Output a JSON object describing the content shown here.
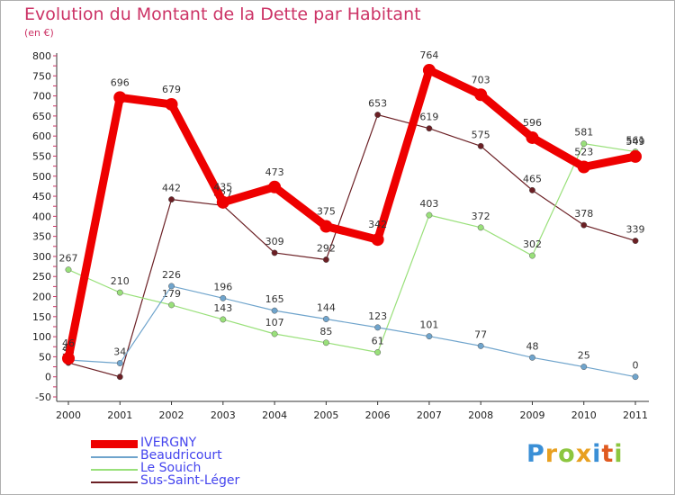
{
  "chart_data": {
    "type": "line",
    "title": "Evolution du Montant de la Dette par Habitant",
    "unit_label": "(en €)",
    "x": [
      "2000",
      "2001",
      "2002",
      "2003",
      "2004",
      "2005",
      "2006",
      "2007",
      "2008",
      "2009",
      "2010",
      "2011"
    ],
    "ylim": [
      -50,
      800
    ],
    "yticks": [
      "-50",
      "0",
      "50",
      "100",
      "150",
      "200",
      "250",
      "300",
      "350",
      "400",
      "450",
      "500",
      "550",
      "600",
      "650",
      "700",
      "750",
      "800"
    ],
    "grid": false,
    "series": [
      {
        "name": "Sus-Saint-Léger",
        "color": "#6b1f24",
        "values": [
          35,
          0,
          442,
          427,
          309,
          292,
          653,
          619,
          575,
          465,
          378,
          339
        ],
        "labels": [
          "35",
          "",
          "442",
          "427",
          "309",
          "292",
          "653",
          "619",
          "575",
          "465",
          "378",
          "339"
        ]
      },
      {
        "name": "Le Souich",
        "color": "#99e07a",
        "values": [
          267,
          210,
          179,
          143,
          107,
          85,
          61,
          403,
          372,
          302,
          581,
          561
        ],
        "labels": [
          "267",
          "210",
          "179",
          "143",
          "107",
          "85",
          "61",
          "403",
          "372",
          "302",
          "581",
          "561"
        ]
      },
      {
        "name": "Beaudricourt",
        "color": "#6fa4cc",
        "values": [
          42,
          34,
          226,
          196,
          165,
          144,
          123,
          101,
          77,
          48,
          25,
          0
        ],
        "labels": [
          "42",
          "34",
          "226",
          "196",
          "165",
          "144",
          "123",
          "101",
          "77",
          "48",
          "25",
          "0"
        ]
      },
      {
        "name": "IVERGNY",
        "color": "#ee0000",
        "values": [
          46,
          696,
          679,
          435,
          473,
          375,
          342,
          764,
          703,
          596,
          523,
          549
        ],
        "labels": [
          "46",
          "696",
          "679",
          "435",
          "473",
          "375",
          "342",
          "764",
          "703",
          "596",
          "523",
          "549"
        ]
      }
    ]
  },
  "legend": {
    "items": [
      {
        "label": "IVERGNY",
        "color": "#ee0000"
      },
      {
        "label": "Beaudricourt",
        "color": "#6fa4cc"
      },
      {
        "label": "Le Souich",
        "color": "#99e07a"
      },
      {
        "label": "Sus-Saint-Léger",
        "color": "#6b1f24"
      }
    ]
  },
  "logo": {
    "letters": [
      {
        "ch": "P",
        "color": "#3a8fd6"
      },
      {
        "ch": "r",
        "color": "#e8a020"
      },
      {
        "ch": "o",
        "color": "#8cc63f"
      },
      {
        "ch": "x",
        "color": "#e8a020"
      },
      {
        "ch": "i",
        "color": "#3a8fd6"
      },
      {
        "ch": "t",
        "color": "#e05a20"
      },
      {
        "ch": "i",
        "color": "#8cc63f"
      }
    ]
  }
}
